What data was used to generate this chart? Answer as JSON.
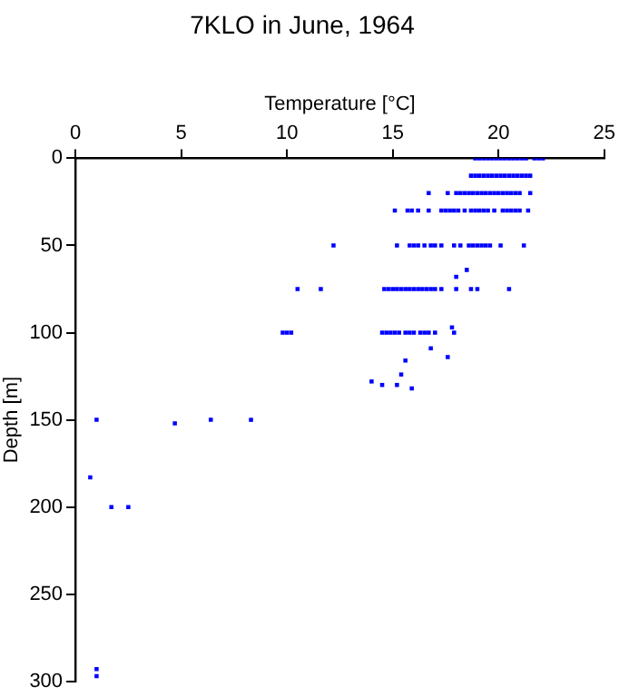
{
  "chart_data": {
    "type": "scatter",
    "title": "7KLO in June, 1964",
    "xlabel": "Temperature [°C]",
    "ylabel": "Depth [m]",
    "marker": "square",
    "grid": false,
    "legend": false,
    "xlim": [
      0,
      25
    ],
    "xticks": [
      0,
      5,
      10,
      15,
      20,
      25
    ],
    "ylim": [
      300,
      0
    ],
    "yticks": [
      0,
      50,
      100,
      150,
      200,
      250,
      300
    ],
    "series": [
      {
        "color": "#0000ff",
        "x": [
          18.9,
          19.1,
          19.3,
          19.5,
          19.7,
          19.9,
          20.1,
          20.3,
          20.5,
          20.7,
          20.9,
          21.1,
          21.3,
          21.7,
          21.9,
          22.1,
          18.7,
          18.9,
          19.1,
          19.3,
          19.5,
          19.7,
          19.9,
          20.1,
          20.3,
          20.5,
          20.7,
          20.9,
          21.1,
          21.3,
          21.5,
          16.7,
          17.6,
          18.0,
          18.2,
          18.4,
          18.6,
          18.8,
          19.0,
          19.2,
          19.4,
          19.6,
          19.8,
          20.0,
          20.2,
          20.4,
          20.6,
          20.8,
          21.0,
          21.5,
          15.1,
          15.7,
          15.9,
          16.2,
          16.7,
          17.3,
          17.5,
          17.7,
          17.9,
          18.1,
          18.4,
          18.7,
          18.9,
          19.1,
          19.3,
          19.5,
          19.8,
          20.2,
          20.4,
          20.6,
          20.8,
          21.0,
          21.4,
          12.2,
          15.2,
          15.8,
          16.0,
          16.2,
          16.5,
          16.8,
          17.0,
          17.3,
          17.9,
          18.2,
          18.6,
          18.8,
          19.0,
          19.2,
          19.4,
          19.6,
          20.1,
          21.2,
          18.5,
          18.0,
          10.5,
          11.6,
          14.6,
          14.8,
          15.0,
          15.2,
          15.4,
          15.6,
          15.8,
          16.0,
          16.2,
          16.4,
          16.6,
          16.8,
          17.0,
          17.3,
          18.0,
          18.7,
          19.0,
          20.5,
          17.8,
          9.8,
          10.0,
          10.2,
          14.5,
          14.7,
          14.9,
          15.1,
          15.3,
          15.6,
          15.8,
          16.0,
          16.3,
          16.5,
          16.7,
          17.0,
          17.9,
          16.8,
          17.6,
          15.6,
          15.4,
          14.0,
          14.5,
          15.2,
          15.9,
          1.0,
          6.4,
          8.3,
          4.7,
          0.7,
          1.7,
          2.5,
          1.0,
          1.0
        ],
        "values": [
          0,
          0,
          0,
          0,
          0,
          0,
          0,
          0,
          0,
          0,
          0,
          0,
          0,
          0,
          0,
          0,
          10,
          10,
          10,
          10,
          10,
          10,
          10,
          10,
          10,
          10,
          10,
          10,
          10,
          10,
          10,
          20,
          20,
          20,
          20,
          20,
          20,
          20,
          20,
          20,
          20,
          20,
          20,
          20,
          20,
          20,
          20,
          20,
          20,
          20,
          30,
          30,
          30,
          30,
          30,
          30,
          30,
          30,
          30,
          30,
          30,
          30,
          30,
          30,
          30,
          30,
          30,
          30,
          30,
          30,
          30,
          30,
          30,
          50,
          50,
          50,
          50,
          50,
          50,
          50,
          50,
          50,
          50,
          50,
          50,
          50,
          50,
          50,
          50,
          50,
          50,
          50,
          64,
          68,
          75,
          75,
          75,
          75,
          75,
          75,
          75,
          75,
          75,
          75,
          75,
          75,
          75,
          75,
          75,
          75,
          75,
          75,
          75,
          75,
          97,
          100,
          100,
          100,
          100,
          100,
          100,
          100,
          100,
          100,
          100,
          100,
          100,
          100,
          100,
          100,
          100,
          109,
          114,
          116,
          124,
          128,
          130,
          130,
          132,
          150,
          150,
          150,
          152,
          183,
          200,
          200,
          293,
          297
        ]
      }
    ]
  }
}
